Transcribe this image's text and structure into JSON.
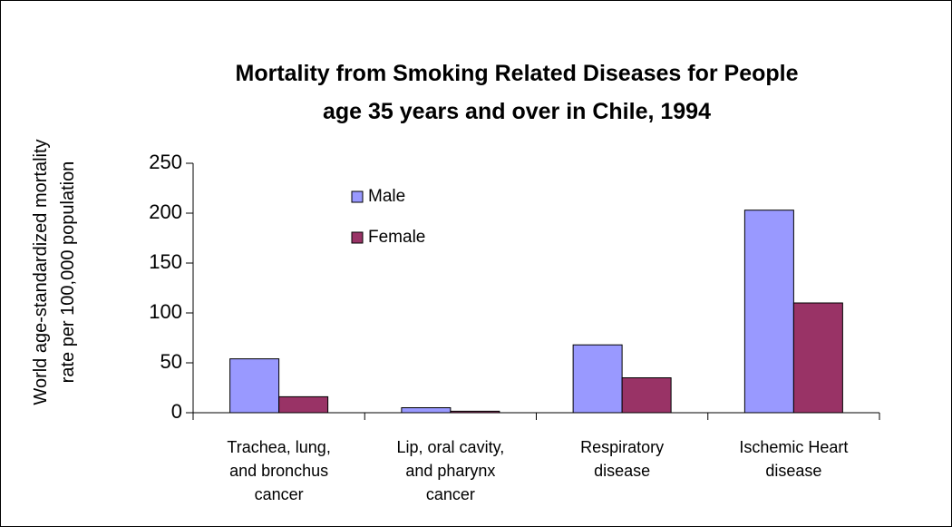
{
  "chart_data": {
    "type": "bar",
    "title": "Mortality from Smoking Related Diseases for People\nage 35 years and over in Chile, 1994",
    "y_label": "World age-standardized mortality\nrate per 100,000 population",
    "categories": [
      "Trachea, lung,\nand bronchus\ncancer",
      "Lip, oral cavity,\nand pharynx\ncancer",
      "Respiratory\ndisease",
      "Ischemic Heart\ndisease"
    ],
    "series": [
      {
        "name": "Male",
        "color": "#9999ff",
        "values": [
          54,
          5,
          68,
          203
        ]
      },
      {
        "name": "Female",
        "color": "#993366",
        "values": [
          16,
          1.5,
          35,
          110
        ]
      }
    ],
    "ylim": [
      0,
      250
    ],
    "yticks": [
      0,
      50,
      100,
      150,
      200,
      250
    ],
    "grid": false
  }
}
